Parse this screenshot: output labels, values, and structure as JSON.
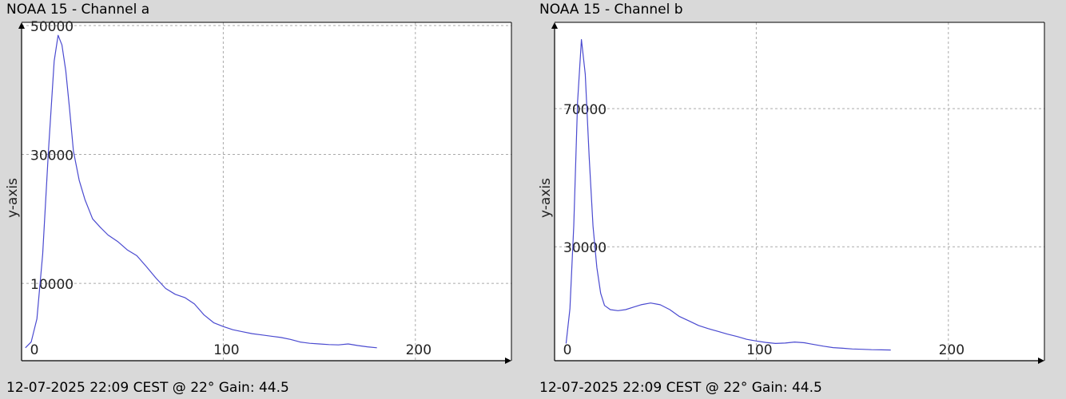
{
  "chart_data": [
    {
      "type": "line",
      "title": "NOAA 15 - Channel a",
      "footer": "12-07-2025 22:09 CEST @ 22° Gain: 44.5",
      "xlabel": "",
      "ylabel": "y-axis",
      "xlim": [
        0,
        250
      ],
      "ylim": [
        -2000,
        50500
      ],
      "xticks": [
        0,
        100,
        200
      ],
      "yticks": [
        10000,
        30000,
        50000
      ],
      "grid": true,
      "color": "#4a4ad0",
      "series": [
        {
          "x": [
            -3,
            0,
            3,
            6,
            9,
            12,
            14,
            16,
            18,
            20,
            22,
            25,
            28,
            32,
            36,
            40,
            45,
            50,
            55,
            60,
            65,
            70,
            75,
            80,
            85,
            90,
            95,
            100,
            105,
            110,
            115,
            120,
            125,
            130,
            135,
            140,
            145,
            150,
            155,
            160,
            165,
            170,
            175,
            180
          ],
          "y": [
            0,
            900,
            4500,
            14500,
            30500,
            44500,
            48500,
            47000,
            43000,
            37000,
            30500,
            26000,
            23000,
            20000,
            18700,
            17500,
            16500,
            15200,
            14300,
            12600,
            10800,
            9200,
            8300,
            7800,
            6800,
            5100,
            3900,
            3300,
            2800,
            2500,
            2200,
            2000,
            1800,
            1600,
            1300,
            900,
            700,
            600,
            500,
            450,
            600,
            350,
            150,
            0
          ]
        }
      ]
    },
    {
      "type": "line",
      "title": "NOAA 15 - Channel b",
      "footer": "12-07-2025 22:09 CEST @ 22° Gain: 44.5",
      "xlabel": "",
      "ylabel": "y-axis",
      "xlim": [
        0,
        250
      ],
      "ylim": [
        -3000,
        95000
      ],
      "xticks": [
        0,
        100,
        200
      ],
      "yticks": [
        30000,
        70000
      ],
      "grid": true,
      "color": "#4a4ad0",
      "series": [
        {
          "x": [
            1,
            3,
            5,
            7,
            9,
            11,
            13,
            15,
            17,
            19,
            21,
            24,
            28,
            32,
            36,
            40,
            45,
            50,
            55,
            60,
            65,
            70,
            75,
            80,
            85,
            90,
            95,
            100,
            105,
            110,
            115,
            120,
            125,
            130,
            135,
            140,
            145,
            150,
            155,
            160,
            165,
            170
          ],
          "y": [
            2000,
            12000,
            36000,
            72000,
            90000,
            80000,
            56000,
            36000,
            24000,
            16500,
            13000,
            11800,
            11500,
            11800,
            12500,
            13200,
            13700,
            13200,
            11800,
            9800,
            8500,
            7200,
            6300,
            5500,
            4700,
            4000,
            3200,
            2700,
            2300,
            2000,
            2100,
            2400,
            2200,
            1700,
            1200,
            800,
            600,
            400,
            300,
            200,
            150,
            100
          ]
        }
      ]
    }
  ]
}
